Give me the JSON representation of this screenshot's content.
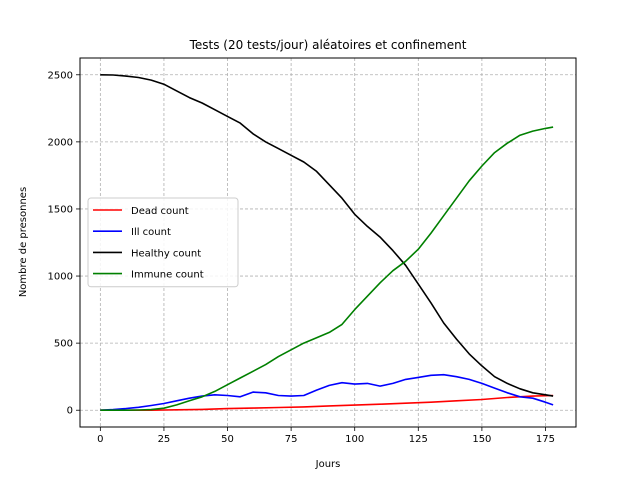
{
  "chart_data": {
    "type": "line",
    "title": "Tests (20 tests/jour) aléatoires et confinement",
    "xlabel": "Jours",
    "ylabel": "Nombre de presonnes",
    "xlim": [
      -8,
      187
    ],
    "ylim": [
      -125,
      2625
    ],
    "xticks": [
      0,
      25,
      50,
      75,
      100,
      125,
      150,
      175
    ],
    "yticks": [
      0,
      500,
      1000,
      1500,
      2000,
      2500
    ],
    "grid": true,
    "grid_style": "dashed",
    "legend_position": "center-left",
    "series": [
      {
        "name": "Dead count",
        "color": "#ff0000",
        "x": [
          0,
          10,
          20,
          25,
          30,
          40,
          50,
          60,
          70,
          80,
          90,
          100,
          110,
          120,
          130,
          140,
          150,
          160,
          170,
          178
        ],
        "y": [
          0,
          0,
          0,
          2,
          3,
          6,
          12,
          16,
          20,
          25,
          32,
          38,
          45,
          52,
          60,
          70,
          80,
          95,
          105,
          110
        ]
      },
      {
        "name": "Ill count",
        "color": "#0000ff",
        "x": [
          0,
          5,
          10,
          15,
          20,
          25,
          30,
          35,
          40,
          45,
          50,
          55,
          60,
          65,
          70,
          75,
          80,
          85,
          90,
          95,
          100,
          105,
          110,
          115,
          120,
          125,
          130,
          135,
          140,
          145,
          150,
          155,
          160,
          165,
          170,
          175,
          178
        ],
        "y": [
          0,
          5,
          12,
          22,
          35,
          50,
          70,
          90,
          105,
          115,
          110,
          100,
          135,
          130,
          110,
          105,
          110,
          150,
          185,
          205,
          195,
          200,
          180,
          200,
          230,
          245,
          260,
          265,
          250,
          230,
          200,
          165,
          130,
          100,
          90,
          60,
          40
        ]
      },
      {
        "name": "Healthy count",
        "color": "#000000",
        "x": [
          0,
          5,
          10,
          15,
          20,
          25,
          30,
          35,
          40,
          45,
          50,
          55,
          60,
          65,
          70,
          75,
          80,
          85,
          90,
          95,
          100,
          105,
          110,
          115,
          120,
          125,
          130,
          135,
          140,
          145,
          150,
          155,
          160,
          165,
          170,
          175,
          178
        ],
        "y": [
          2500,
          2498,
          2490,
          2480,
          2460,
          2430,
          2380,
          2330,
          2290,
          2240,
          2190,
          2140,
          2060,
          2000,
          1950,
          1900,
          1850,
          1780,
          1680,
          1580,
          1460,
          1370,
          1290,
          1190,
          1080,
          940,
          800,
          650,
          530,
          420,
          330,
          250,
          200,
          160,
          130,
          115,
          105
        ]
      },
      {
        "name": "Immune count",
        "color": "#008000",
        "x": [
          0,
          5,
          10,
          15,
          20,
          25,
          30,
          35,
          40,
          45,
          50,
          55,
          60,
          65,
          70,
          75,
          80,
          85,
          90,
          95,
          100,
          105,
          110,
          115,
          120,
          125,
          130,
          135,
          140,
          145,
          150,
          155,
          160,
          165,
          170,
          175,
          178
        ],
        "y": [
          0,
          0,
          0,
          2,
          5,
          15,
          40,
          70,
          100,
          140,
          190,
          240,
          290,
          340,
          400,
          450,
          500,
          540,
          580,
          640,
          750,
          850,
          950,
          1040,
          1110,
          1200,
          1320,
          1450,
          1580,
          1710,
          1820,
          1920,
          1990,
          2050,
          2080,
          2100,
          2110
        ]
      }
    ]
  }
}
